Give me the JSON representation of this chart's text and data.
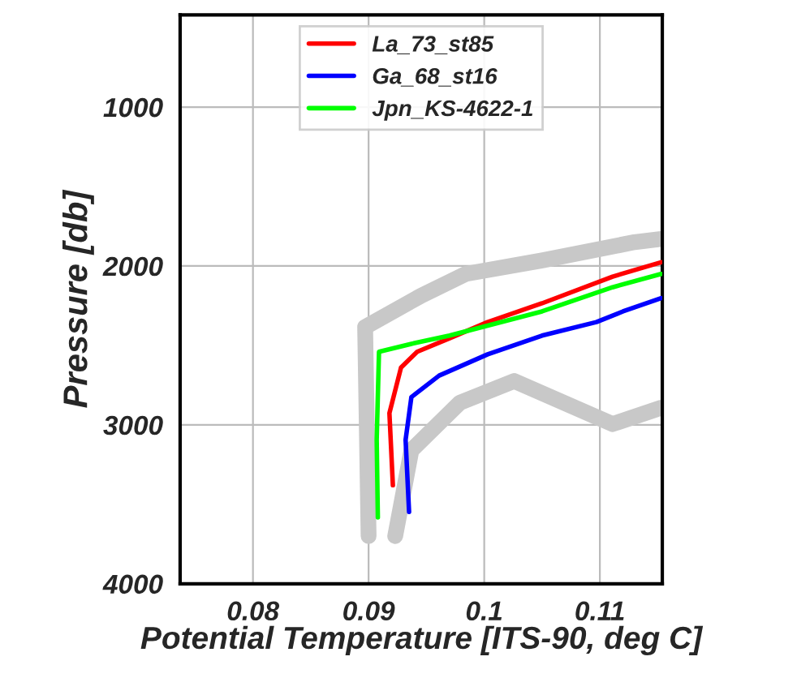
{
  "chart_data": {
    "type": "line",
    "xlabel": "Potential Temperature [ITS-90, deg C]",
    "ylabel": "Pressure [db]",
    "xlim": [
      0.0737,
      0.1154
    ],
    "xticks": [
      0.08,
      0.09,
      0.1,
      0.11
    ],
    "ylim": [
      4000,
      420
    ],
    "yticks": [
      1000,
      2000,
      3000,
      4000
    ],
    "grid": true,
    "legend": "top",
    "line_style": "solid",
    "marker": "none",
    "series": [
      {
        "color": "#c8c8c8",
        "x": [
          0.09,
          0.0897,
          0.0946,
          0.0984,
          0.105,
          0.113,
          0.1153
        ],
        "values": [
          3700,
          2384,
          2185,
          2050,
          1965,
          1850,
          1830
        ]
      },
      {
        "color": "#c8c8c8",
        "x": [
          0.0923,
          0.0937,
          0.0979,
          0.1026,
          0.1111,
          0.1153
        ],
        "values": [
          3700,
          3160,
          2860,
          2724,
          2995,
          2892
        ]
      },
      {
        "name": "La_73_st85",
        "color": "#ff0000",
        "x": [
          0.0921,
          0.0918,
          0.0928,
          0.0942,
          0.097,
          0.1003,
          0.105,
          0.1111,
          0.1153
        ],
        "values": [
          3380,
          2926,
          2640,
          2540,
          2455,
          2353,
          2235,
          2067,
          1977
        ]
      },
      {
        "name": "Ga_68_st16",
        "color": "#0000ff",
        "x": [
          0.0935,
          0.0932,
          0.0937,
          0.0961,
          0.1003,
          0.105,
          0.1097,
          0.112,
          0.1153
        ],
        "values": [
          3548,
          3094,
          2825,
          2690,
          2556,
          2438,
          2353,
          2286,
          2202
        ]
      },
      {
        "name": "Jpn_KS-4622-1",
        "color": "#00ff00",
        "x": [
          0.0908,
          0.0907,
          0.0909,
          0.0937,
          0.097,
          0.105,
          0.1111,
          0.1153
        ],
        "values": [
          3582,
          3094,
          2540,
          2490,
          2438,
          2286,
          2134,
          2050
        ]
      }
    ]
  }
}
